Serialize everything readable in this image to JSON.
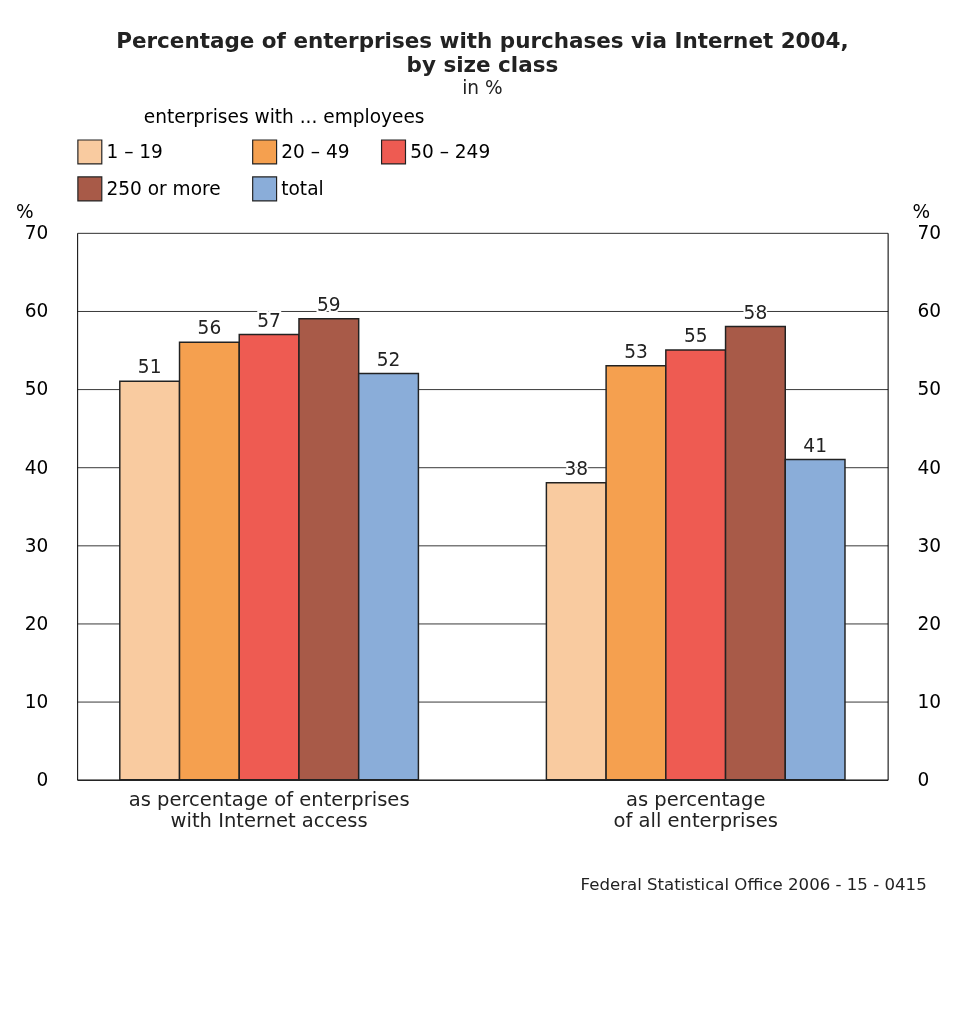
{
  "chart_data": {
    "type": "bar",
    "title": "Percentage of enterprises with purchases via Internet 2004,\nby size class",
    "subtitle": "in %",
    "categories": [
      "as percentage of enterprises\nwith Internet access",
      "as percentage\nof all enterprises"
    ],
    "series": [
      {
        "name": "1 – 19",
        "color": "#f9cba0",
        "values": [
          51,
          38
        ]
      },
      {
        "name": "20 – 49",
        "color": "#f5a04f",
        "values": [
          56,
          53
        ]
      },
      {
        "name": "50 – 249",
        "color": "#ee5b52",
        "values": [
          57,
          55
        ]
      },
      {
        "name": "250 or more",
        "color": "#a85a48",
        "values": [
          59,
          58
        ]
      },
      {
        "name": "total",
        "color": "#8aadd9",
        "values": [
          52,
          41
        ]
      }
    ],
    "legend_title": "enterprises with ... employees",
    "legend": "top",
    "ylabel": "%",
    "y2label": "%",
    "ylim": [
      0,
      70
    ],
    "yticks": [
      0,
      10,
      20,
      30,
      40,
      50,
      60,
      70
    ],
    "y2lim": [
      0,
      70
    ],
    "y2ticks": [
      0,
      10,
      20,
      30,
      40,
      50,
      60,
      70
    ],
    "grid": "y",
    "data_labels": true,
    "annotations": [
      "Federal Statistical Office 2006 - 15 - 0415"
    ]
  }
}
